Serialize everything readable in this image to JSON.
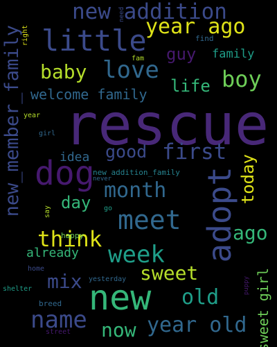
{
  "palette": {
    "background": "#000000",
    "deep_purple": "#46196e",
    "purple": "#482878",
    "indigo": "#3b4a8a",
    "blue": "#31688e",
    "teal": "#26828e",
    "green_teal": "#1f9e89",
    "green": "#35b779",
    "light_green": "#6ece58",
    "yellow_green": "#b5de2b",
    "yellow": "#dfe318"
  },
  "words": {
    "rescue": "rescue",
    "new": "new",
    "adopt": "adopt",
    "dog": "dog",
    "new_member_family": "new_member_family",
    "little": "little",
    "new_addition": "new addition",
    "year_ago": "year ago",
    "love": "love",
    "boy": "boy",
    "baby": "baby",
    "guy": "guy",
    "family": "family",
    "life": "life",
    "welcome_family": "welcome family",
    "first": "first",
    "good": "good",
    "today": "today",
    "idea": "idea",
    "new_addition_family": "new addition_family",
    "never": "never",
    "month": "month",
    "day": "day",
    "meet": "meet",
    "think": "think",
    "ago": "ago",
    "week": "week",
    "already": "already",
    "mix": "mix",
    "sweet": "sweet",
    "old": "old",
    "sweet_girl": "sweet girl",
    "name": "name",
    "year_old": "year old",
    "now": "now",
    "street": "street",
    "breed": "breed",
    "shelter": "shelter",
    "home": "home",
    "yesterday": "yesterday",
    "puppy": "puppy",
    "happy": "happy",
    "say": "say",
    "go": "go",
    "girl": "girl",
    "year": "year",
    "right": "right",
    "need": "need",
    "find": "find",
    "fam": "fam"
  }
}
